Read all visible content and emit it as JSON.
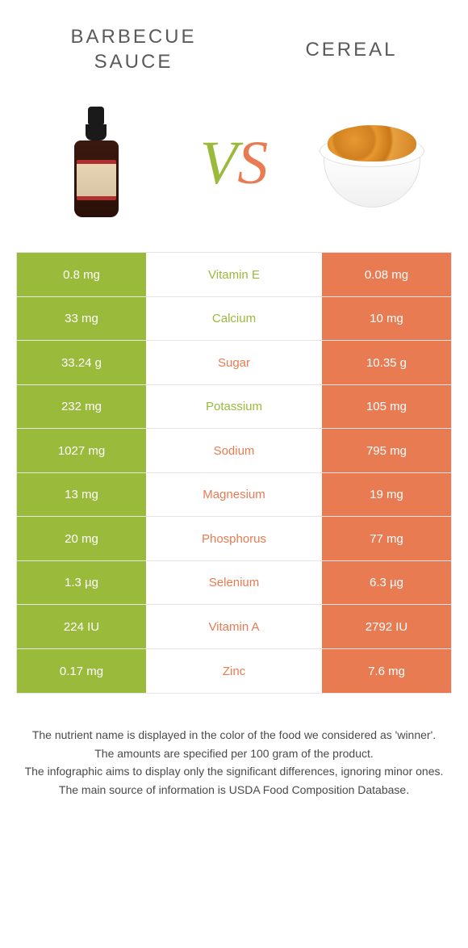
{
  "header": {
    "left_title": "BARBECUE\nSAUCE",
    "right_title": "CEREAL"
  },
  "vs": {
    "v": "V",
    "s": "S"
  },
  "colors": {
    "green": "#9aba3b",
    "orange": "#e87b52",
    "border": "#e5e5e5",
    "text": "#4a4a4a"
  },
  "table": {
    "rows": [
      {
        "left": "0.8 mg",
        "label": "Vitamin E",
        "right": "0.08 mg",
        "winner": "green"
      },
      {
        "left": "33 mg",
        "label": "Calcium",
        "right": "10 mg",
        "winner": "green"
      },
      {
        "left": "33.24 g",
        "label": "Sugar",
        "right": "10.35 g",
        "winner": "orange"
      },
      {
        "left": "232 mg",
        "label": "Potassium",
        "right": "105 mg",
        "winner": "green"
      },
      {
        "left": "1027 mg",
        "label": "Sodium",
        "right": "795 mg",
        "winner": "orange"
      },
      {
        "left": "13 mg",
        "label": "Magnesium",
        "right": "19 mg",
        "winner": "orange"
      },
      {
        "left": "20 mg",
        "label": "Phosphorus",
        "right": "77 mg",
        "winner": "orange"
      },
      {
        "left": "1.3 µg",
        "label": "Selenium",
        "right": "6.3 µg",
        "winner": "orange"
      },
      {
        "left": "224 IU",
        "label": "Vitamin A",
        "right": "2792 IU",
        "winner": "orange"
      },
      {
        "left": "0.17 mg",
        "label": "Zinc",
        "right": "7.6 mg",
        "winner": "orange"
      }
    ]
  },
  "footer": {
    "line1": "The nutrient name is displayed in the color of the food we considered as 'winner'.",
    "line2": "The amounts are specified per 100 gram of the product.",
    "line3": "The infographic aims to display only the significant differences, ignoring minor ones.",
    "line4": "The main source of information is USDA Food Composition Database."
  }
}
